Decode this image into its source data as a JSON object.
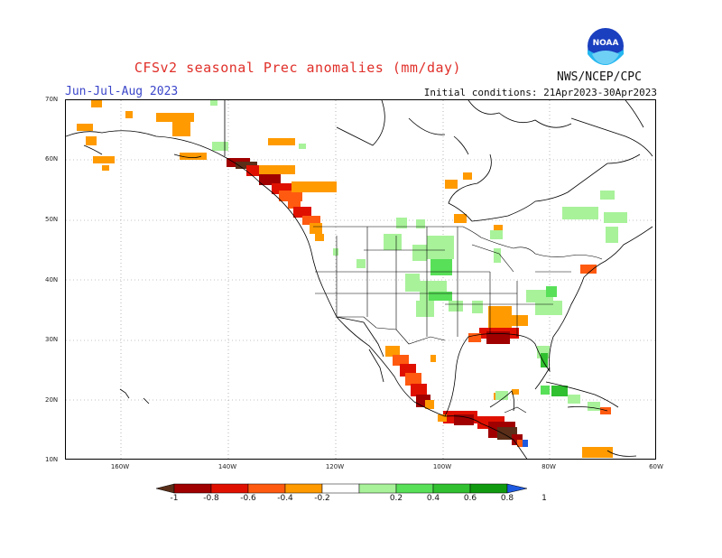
{
  "title": "CFSv2 seasonal Prec anomalies (mm/day)",
  "season": "Jun-Jul-Aug 2023",
  "initial_conditions": "Initial conditions: 21Apr2023-30Apr2023",
  "agency": "NWS/NCEP/CPC",
  "logo_text": "NOAA",
  "lat_labels": [
    "70N",
    "60N",
    "50N",
    "40N",
    "30N",
    "20N",
    "10N"
  ],
  "lon_labels": [
    "160W",
    "140W",
    "120W",
    "100W",
    "80W",
    "60W"
  ],
  "colorbar": {
    "labels": [
      "-1",
      "-0.8",
      "-0.6",
      "-0.4",
      "-0.2",
      "0.2",
      "0.4",
      "0.6",
      "0.8",
      "1"
    ],
    "colors": [
      "#5a2e18",
      "#a00000",
      "#e01000",
      "#ff5a10",
      "#ff9a00",
      "#ffffff",
      "#a8f29a",
      "#58e058",
      "#30c030",
      "#109a10",
      "#1e5ae0"
    ]
  }
}
